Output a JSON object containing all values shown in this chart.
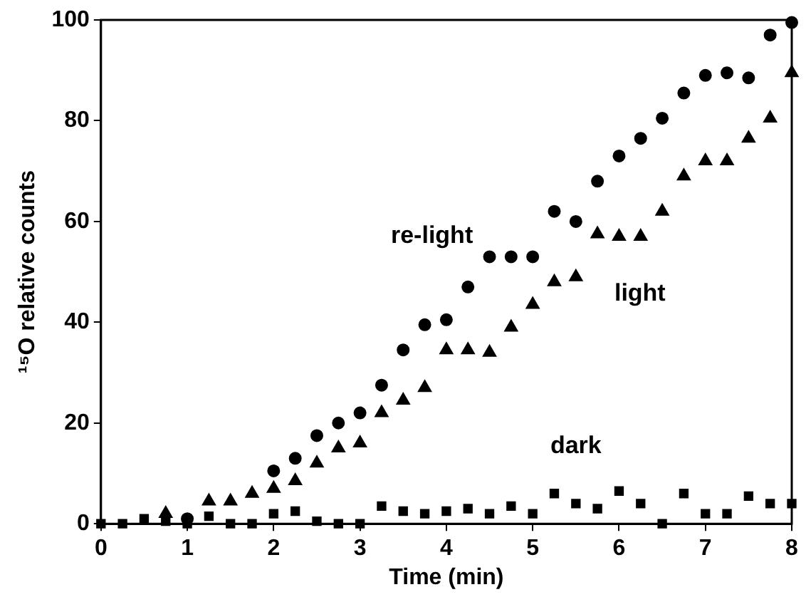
{
  "chart_data": {
    "type": "scatter",
    "xlabel": "Time (min)",
    "ylabel": "¹⁵O relative counts",
    "x": [
      0,
      0.25,
      0.5,
      0.75,
      1,
      1.25,
      1.5,
      1.75,
      2,
      2.25,
      2.5,
      2.75,
      3,
      3.25,
      3.5,
      3.75,
      4,
      4.25,
      4.5,
      4.75,
      5,
      5.25,
      5.5,
      5.75,
      6,
      6.25,
      6.5,
      6.75,
      7,
      7.25,
      7.5,
      7.75,
      8
    ],
    "xlim": [
      0,
      8
    ],
    "xticks": [
      0,
      1,
      2,
      3,
      4,
      5,
      6,
      7,
      8
    ],
    "ylim": [
      0,
      100
    ],
    "yticks": [
      0,
      20,
      40,
      60,
      80,
      100
    ],
    "grid": false,
    "legend": false,
    "series": [
      {
        "name": "re-light",
        "marker": "circle",
        "color": "#000000",
        "values": [
          null,
          null,
          null,
          null,
          1,
          null,
          null,
          null,
          10.5,
          13,
          17.5,
          20,
          22,
          27.5,
          34.5,
          39.5,
          40.5,
          47,
          53,
          53,
          53,
          62,
          60,
          68,
          73,
          76.5,
          80.5,
          85.5,
          89,
          89.5,
          88.5,
          97,
          99.5
        ]
      },
      {
        "name": "light",
        "marker": "triangle",
        "color": "#000000",
        "values": [
          null,
          null,
          null,
          2,
          null,
          4.5,
          4.5,
          6,
          7,
          8.5,
          12,
          15,
          16,
          22,
          24.5,
          27,
          34.5,
          34.5,
          34,
          39,
          43.5,
          48,
          49,
          57.5,
          57,
          57,
          62,
          69,
          72,
          72,
          76.5,
          80.5,
          89.5
        ]
      },
      {
        "name": "dark",
        "marker": "square",
        "color": "#000000",
        "values": [
          0,
          0,
          1,
          0.5,
          0,
          1.5,
          0,
          0,
          2,
          2.5,
          0.5,
          0,
          0,
          3.5,
          2.5,
          2,
          2.5,
          3,
          2,
          3.5,
          2,
          6,
          4,
          3,
          6.5,
          4,
          0,
          6,
          2,
          2,
          5.5,
          4,
          4
        ]
      }
    ]
  }
}
